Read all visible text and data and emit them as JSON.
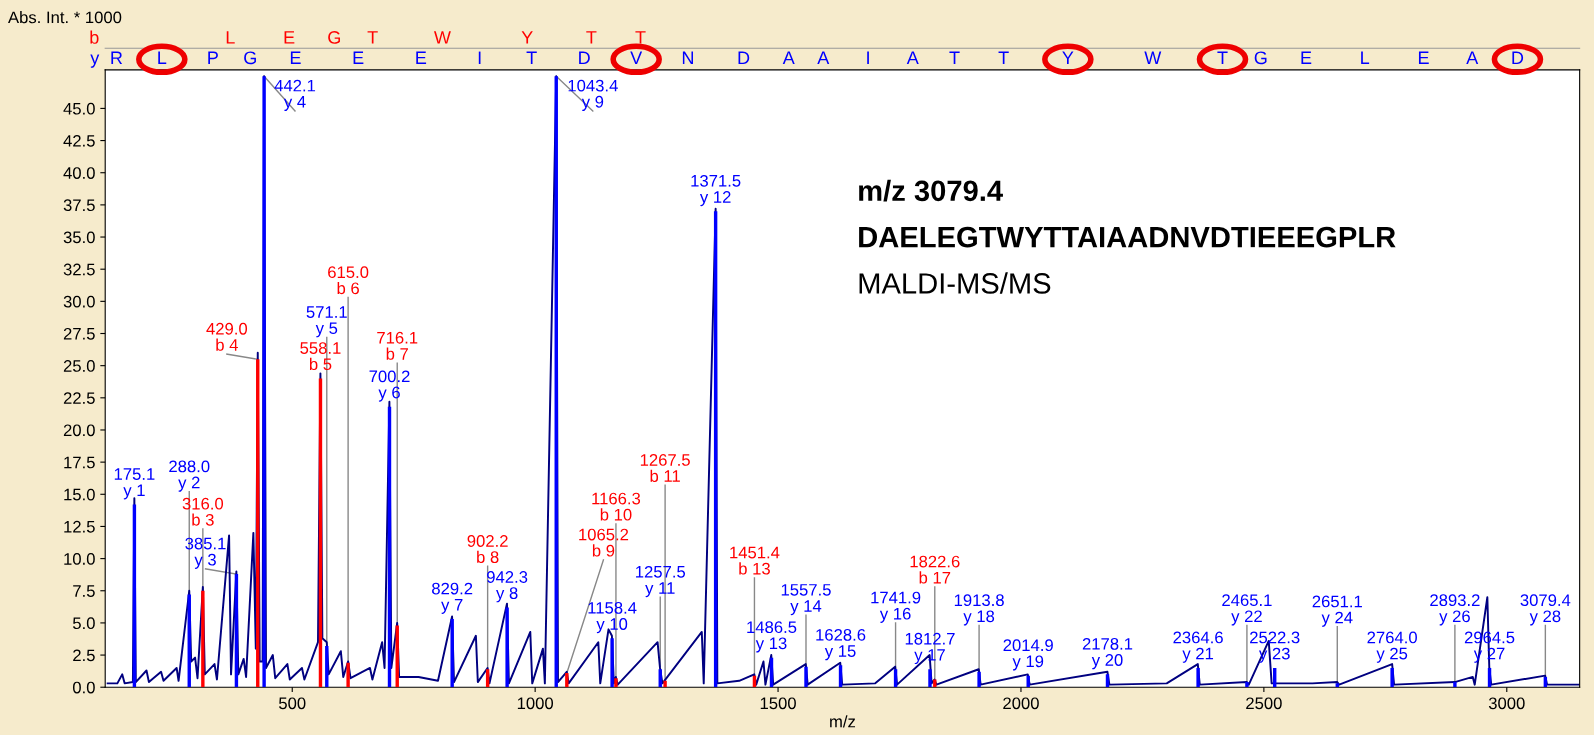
{
  "chart_data": {
    "type": "line",
    "xlabel": "m/z",
    "ylabel": "Abs. Int. * 1000",
    "xlim": [
      115,
      3150
    ],
    "xticks": [
      500,
      1000,
      1500,
      2000,
      2500,
      3000
    ],
    "ylim": [
      0,
      48
    ],
    "yticks": [
      {
        "value": 0,
        "label": "0.0"
      },
      {
        "value": 2.5,
        "label": "2.5"
      },
      {
        "value": 5,
        "label": "5.0"
      },
      {
        "value": 7.5,
        "label": "7.5"
      },
      {
        "value": 10,
        "label": "10.0"
      },
      {
        "value": 12.5,
        "label": "12.5"
      },
      {
        "value": 15,
        "label": "15.0"
      },
      {
        "value": 17.5,
        "label": "17.5"
      },
      {
        "value": 20,
        "label": "20.0"
      },
      {
        "value": 22.5,
        "label": "22.5"
      },
      {
        "value": 25,
        "label": "25.0"
      },
      {
        "value": 27.5,
        "label": "27.5"
      },
      {
        "value": 30,
        "label": "30.0"
      },
      {
        "value": 32.5,
        "label": "32.5"
      },
      {
        "value": 35,
        "label": "35.0"
      },
      {
        "value": 37.5,
        "label": "37.5"
      },
      {
        "value": 40,
        "label": "40.0"
      },
      {
        "value": 42.5,
        "label": "42.5"
      },
      {
        "value": 45,
        "label": "45.0"
      }
    ],
    "series": [
      {
        "color": "#000080",
        "x": [
          120,
          140,
          150,
          155,
          172,
          175,
          178,
          200,
          205,
          230,
          235,
          262,
          266,
          288,
          292,
          300,
          305,
          316,
          320,
          340,
          345,
          370,
          374,
          385,
          389,
          400,
          405,
          420,
          425,
          429,
          433,
          439,
          442,
          446,
          460,
          465,
          490,
          495,
          520,
          525,
          553,
          558,
          562,
          571,
          575,
          600,
          605,
          615,
          620,
          660,
          665,
          685,
          690,
          700,
          704,
          716,
          720,
          760,
          800,
          829,
          833,
          878,
          882,
          902,
          906,
          942,
          946,
          990,
          994,
          1016,
          1020,
          1043.4,
          1047,
          1065,
          1069,
          1130,
          1134,
          1151,
          1158,
          1162,
          1166,
          1170,
          1252,
          1257,
          1262,
          1343,
          1347,
          1371.5,
          1375,
          1420,
          1451,
          1455,
          1470,
          1474,
          1486,
          1490,
          1557,
          1561,
          1628,
          1632,
          1700,
          1741,
          1745,
          1812,
          1816,
          1822,
          1826,
          1913,
          1917,
          2014,
          2018,
          2178,
          2182,
          2300,
          2364,
          2368,
          2465,
          2469,
          2510,
          2516,
          2600,
          2651,
          2655,
          2764,
          2768,
          2893,
          2930,
          2934,
          2960,
          2964,
          2968,
          3079,
          3083,
          3150
        ],
        "values": [
          0.3,
          0.3,
          1.0,
          0.3,
          0.4,
          14.7,
          0.4,
          1.3,
          0.4,
          1.2,
          0.5,
          1.5,
          0.5,
          7.5,
          2.0,
          2.3,
          0.7,
          7.8,
          1.0,
          1.8,
          0.6,
          11.8,
          1.0,
          9.0,
          1.0,
          2.2,
          0.8,
          12.0,
          3.0,
          26.0,
          2.0,
          2.0,
          47.5,
          1.5,
          2.5,
          0.7,
          1.8,
          0.6,
          1.5,
          0.6,
          3.5,
          24.4,
          3.8,
          3.5,
          1.0,
          2.8,
          0.8,
          2.0,
          0.7,
          1.5,
          0.6,
          3.5,
          1.5,
          22.2,
          1.5,
          5.0,
          0.8,
          0.8,
          0.5,
          5.5,
          0.4,
          4.0,
          0.4,
          1.5,
          0.3,
          6.5,
          0.3,
          4.3,
          0.3,
          3.0,
          0.3,
          47.5,
          0.4,
          1.2,
          0.3,
          3.5,
          0.3,
          4.5,
          4.0,
          0.3,
          0.8,
          0.2,
          3.5,
          1.5,
          0.3,
          4.3,
          0.3,
          37.2,
          0.3,
          0.5,
          1.0,
          0.2,
          2.0,
          0.2,
          2.5,
          0.2,
          1.8,
          0.2,
          1.9,
          0.2,
          0.3,
          1.6,
          0.2,
          2.5,
          0.3,
          0.6,
          0.2,
          1.4,
          0.2,
          1.0,
          0.2,
          1.2,
          0.2,
          0.3,
          1.8,
          0.2,
          0.4,
          0.2,
          3.6,
          0.3,
          0.3,
          0.4,
          0.2,
          1.8,
          0.2,
          0.4,
          0.8,
          0.2,
          7.0,
          1.5,
          0.2,
          0.9,
          0.2,
          0.2
        ]
      },
      {
        "type": "bar",
        "color": "#ff0000",
        "x": [
          316.0,
          429.0,
          558.1,
          615.0,
          716.1,
          902.2,
          1065.2,
          1166.3,
          1267.5,
          1451.4,
          1822.6
        ],
        "values": [
          7.5,
          25.5,
          24.0,
          1.9,
          4.8,
          1.4,
          1.1,
          0.7,
          0.5,
          0.9,
          0.6
        ]
      },
      {
        "type": "bar",
        "color": "#0000ff",
        "x": [
          175.1,
          288.0,
          385.1,
          442.1,
          571.1,
          700.2,
          829.2,
          942.3,
          1043.4,
          1158.4,
          1257.5,
          1371.5,
          1486.5,
          1557.5,
          1628.6,
          1741.9,
          1812.7,
          1913.8,
          2014.9,
          2178.1,
          2364.6,
          2465.1,
          2522.3,
          2651.1,
          2764.0,
          2893.2,
          2964.5,
          3079.4
        ],
        "values": [
          14.2,
          7.2,
          8.8,
          47.5,
          3.2,
          21.8,
          5.3,
          6.2,
          47.5,
          3.8,
          1.4,
          37.0,
          2.3,
          1.6,
          1.7,
          1.4,
          1.4,
          1.2,
          0.9,
          1.0,
          1.5,
          0.4,
          1.5,
          0.3,
          1.5,
          0.4,
          1.5,
          0.8
        ]
      }
    ],
    "annotations": [
      "m/z 3079.4",
      "DAELEGTWYTTAIAADNVDTIEEEGPLR",
      "MALDI-MS/MS",
      "b",
      "y",
      "L E G T W Y T T",
      "R L P G E E E I T D V N D A A I A T T Y W T G E L E A D",
      {
        "text": "316.0\nb 3",
        "x": 316.0,
        "y": 7.5
      },
      {
        "text": "429.0\nb 4",
        "x": 429.0,
        "y": 25.5
      },
      {
        "text": "558.1\nb 5",
        "x": 558.1,
        "y": 24.0
      },
      {
        "text": "615.0\nb 6",
        "x": 615.0,
        "y": 1.9
      },
      {
        "text": "716.1\nb 7",
        "x": 716.1,
        "y": 4.8
      },
      {
        "text": "902.2\nb 8",
        "x": 902.2,
        "y": 1.4
      },
      {
        "text": "1065.2\nb 9",
        "x": 1065.2,
        "y": 1.1
      },
      {
        "text": "1166.3\nb 10",
        "x": 1166.3,
        "y": 0.7
      },
      {
        "text": "1267.5\nb 11",
        "x": 1267.5,
        "y": 0.5
      },
      {
        "text": "1451.4\nb 13",
        "x": 1451.4,
        "y": 0.9
      },
      {
        "text": "1822.6\nb 17",
        "x": 1822.6,
        "y": 0.6
      },
      {
        "text": "175.1\ny 1",
        "x": 175.1,
        "y": 14.2
      },
      {
        "text": "288.0\ny 2",
        "x": 288.0,
        "y": 7.2
      },
      {
        "text": "385.1\ny 3",
        "x": 385.1,
        "y": 8.8
      },
      {
        "text": "442.1\ny 4",
        "x": 442.1,
        "y": 47.5
      },
      {
        "text": "571.1\ny 5",
        "x": 571.1,
        "y": 3.2
      },
      {
        "text": "700.2\ny 6",
        "x": 700.2,
        "y": 21.8
      },
      {
        "text": "829.2\ny 7",
        "x": 829.2,
        "y": 5.3
      },
      {
        "text": "942.3\ny 8",
        "x": 942.3,
        "y": 6.2
      },
      {
        "text": "1043.4\ny 9",
        "x": 1043.4,
        "y": 47.5
      },
      {
        "text": "1158.4\ny 10",
        "x": 1158.4,
        "y": 3.8
      },
      {
        "text": "1257.5\ny 11",
        "x": 1257.5,
        "y": 1.4
      },
      {
        "text": "1371.5\ny 12",
        "x": 1371.5,
        "y": 37.0
      },
      {
        "text": "1486.5\ny 13",
        "x": 1486.5,
        "y": 2.3
      },
      {
        "text": "1557.5\ny 14",
        "x": 1557.5,
        "y": 1.6
      },
      {
        "text": "1628.6\ny 15",
        "x": 1628.6,
        "y": 1.7
      },
      {
        "text": "1741.9\ny 16",
        "x": 1741.9,
        "y": 1.4
      },
      {
        "text": "1812.7\ny 17",
        "x": 1812.7,
        "y": 1.4
      },
      {
        "text": "1913.8\ny 18",
        "x": 1913.8,
        "y": 1.2
      },
      {
        "text": "2014.9\ny 19",
        "x": 2014.9,
        "y": 0.9
      },
      {
        "text": "2178.1\ny 20",
        "x": 2178.1,
        "y": 1.0
      },
      {
        "text": "2364.6\ny 21",
        "x": 2364.6,
        "y": 1.5
      },
      {
        "text": "2465.1\ny 22",
        "x": 2465.1,
        "y": 0.4
      },
      {
        "text": "2522.3\ny 23",
        "x": 2522.3,
        "y": 1.5
      },
      {
        "text": "2651.1\ny 24",
        "x": 2651.1,
        "y": 0.3
      },
      {
        "text": "2764.0\ny 25",
        "x": 2764.0,
        "y": 1.5
      },
      {
        "text": "2893.2\ny 26",
        "x": 2893.2,
        "y": 0.4
      },
      {
        "text": "2964.5\ny 27",
        "x": 2964.5,
        "y": 1.5
      },
      {
        "text": "3079.4\ny 28",
        "x": 3079.4,
        "y": 0.8
      }
    ]
  }
}
